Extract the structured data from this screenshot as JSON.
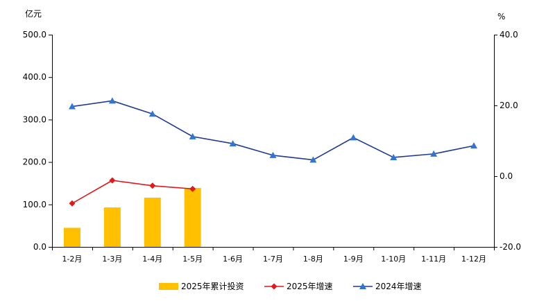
{
  "chart_data": {
    "type": "bar+line",
    "categories": [
      "1-2月",
      "1-3月",
      "1-4月",
      "1-5月",
      "1-6月",
      "1-7月",
      "1-8月",
      "1-9月",
      "1-10月",
      "1-11月",
      "1-12月"
    ],
    "y_left": {
      "unit_label": "亿元",
      "ylim": [
        0,
        500
      ],
      "ticks": [
        "0.0",
        "100.0",
        "200.0",
        "300.0",
        "400.0",
        "500.0"
      ]
    },
    "y_right": {
      "unit_label": "%",
      "ylim": [
        -20,
        40
      ],
      "ticks": [
        "-20.0",
        "0.0",
        "20.0",
        "40.0"
      ]
    },
    "series": [
      {
        "name": "2025年累计投资",
        "type": "bar",
        "axis": "left",
        "color": "#FFC000",
        "values": [
          45,
          93,
          116,
          139,
          null,
          null,
          null,
          null,
          null,
          null,
          null
        ]
      },
      {
        "name": "2025年增速",
        "type": "line",
        "axis": "right",
        "marker": "diamond",
        "color": "#E0191B",
        "values": [
          -7.7,
          -1.2,
          -2.7,
          -3.6,
          null,
          null,
          null,
          null,
          null,
          null,
          null
        ]
      },
      {
        "name": "2024年增速",
        "type": "line",
        "axis": "right",
        "marker": "triangle",
        "color": "#1F3A93",
        "marker_color": "#2E75D6",
        "values": [
          19.7,
          21.3,
          17.6,
          11.2,
          9.2,
          5.9,
          4.6,
          10.9,
          5.3,
          6.3,
          8.6
        ]
      }
    ],
    "legend_position": "bottom-center",
    "grid": false
  }
}
